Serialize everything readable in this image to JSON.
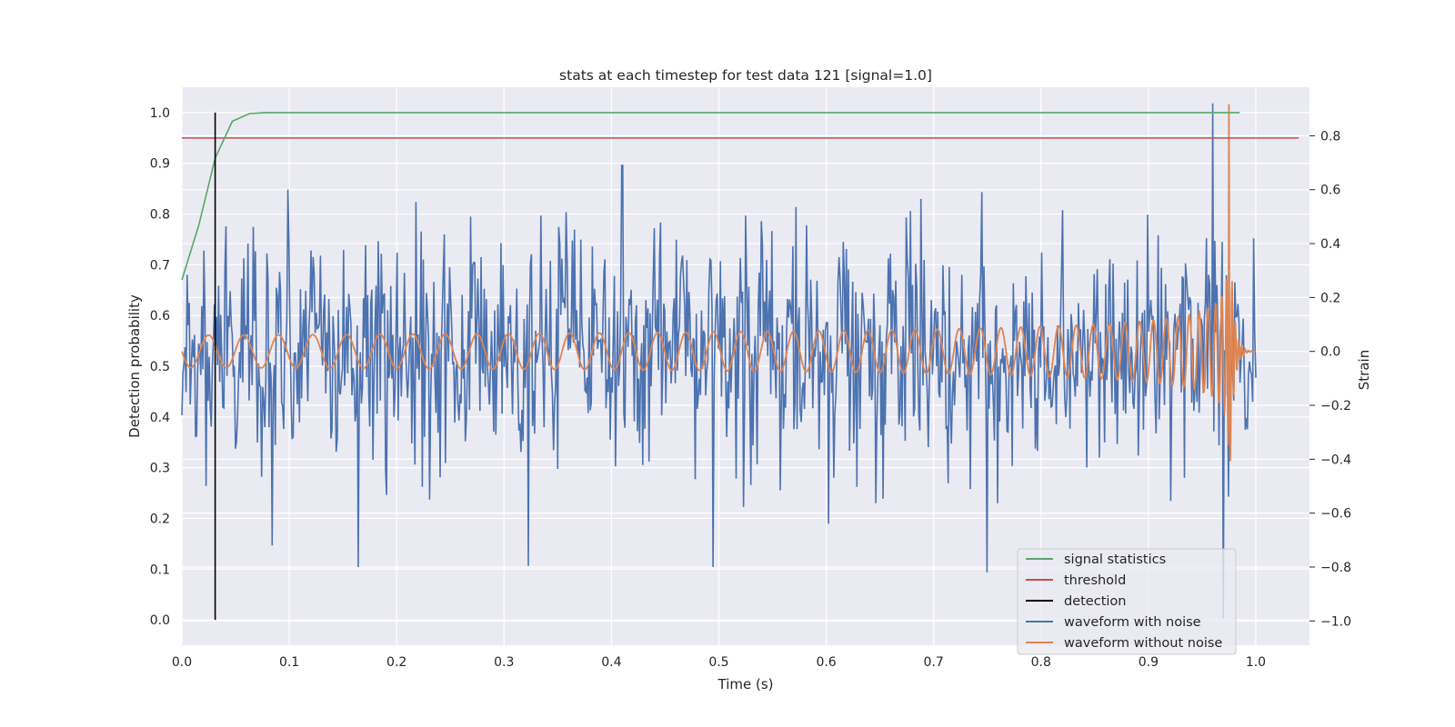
{
  "chart_data": {
    "type": "line",
    "title": "stats at each timestep for test data 121 [signal=1.0]",
    "xlabel": "Time (s)",
    "ylabel_left": "Detection probability",
    "ylabel_right": "Strain",
    "xlim": [
      0.0,
      1.05
    ],
    "ylim_left": [
      -0.05,
      1.05
    ],
    "ylim_right": [
      -1.09,
      0.98
    ],
    "x_ticks": [
      "0.0",
      "0.1",
      "0.2",
      "0.3",
      "0.4",
      "0.5",
      "0.6",
      "0.7",
      "0.8",
      "0.9",
      "1.0"
    ],
    "y_left_ticks": [
      "0.0",
      "0.1",
      "0.2",
      "0.3",
      "0.4",
      "0.5",
      "0.6",
      "0.7",
      "0.8",
      "0.9",
      "1.0"
    ],
    "y_right_ticks": [
      "−1.0",
      "−0.8",
      "−0.6",
      "−0.4",
      "−0.2",
      "0.0",
      "0.2",
      "0.4",
      "0.6",
      "0.8"
    ],
    "grid": true,
    "legend_position": "bottom-right",
    "signal_statistics": {
      "name": "signal statistics",
      "color": "#55a868",
      "x": [
        0.0,
        0.016,
        0.031,
        0.047,
        0.063,
        0.078,
        0.094,
        0.2,
        0.4,
        0.6,
        0.8,
        0.985
      ],
      "y": [
        0.67,
        0.78,
        0.91,
        0.983,
        0.998,
        1.0,
        1.0,
        1.0,
        1.0,
        1.0,
        1.0,
        1.0
      ]
    },
    "threshold": {
      "name": "threshold",
      "color": "#c44e52",
      "value": 0.95,
      "x_range": [
        0.0,
        1.04
      ]
    },
    "detection": {
      "name": "detection",
      "color": "#000000",
      "x": 0.031,
      "y_range": [
        0.0,
        1.0
      ]
    },
    "waveform_with_noise": {
      "name": "waveform with noise",
      "color": "#4c72b0",
      "x_range": [
        0.0,
        1.0
      ],
      "samples": 1024,
      "strain_peaks": [
        {
          "t": 0.084,
          "v": -0.72
        },
        {
          "t": 0.099,
          "v": 0.6
        },
        {
          "t": 0.164,
          "v": -0.8
        },
        {
          "t": 0.41,
          "v": 0.69
        },
        {
          "t": 0.495,
          "v": -0.8
        },
        {
          "t": 0.75,
          "v": -0.82
        },
        {
          "t": 0.96,
          "v": 0.92
        },
        {
          "t": 0.97,
          "v": -0.99
        }
      ]
    },
    "waveform_without_noise": {
      "name": "waveform without noise",
      "color": "#dd8452",
      "type": "chirp",
      "merger_time": 0.975,
      "ringdown_end": 1.0,
      "start_frequency_hz": 30,
      "amplitude_start": 0.06,
      "amplitude_peak": 0.92
    },
    "legend": [
      {
        "label": "signal statistics",
        "color": "#55a868"
      },
      {
        "label": "threshold",
        "color": "#c44e52"
      },
      {
        "label": "detection",
        "color": "#000000"
      },
      {
        "label": "waveform with noise",
        "color": "#4c72b0"
      },
      {
        "label": "waveform without noise",
        "color": "#dd8452"
      }
    ]
  }
}
